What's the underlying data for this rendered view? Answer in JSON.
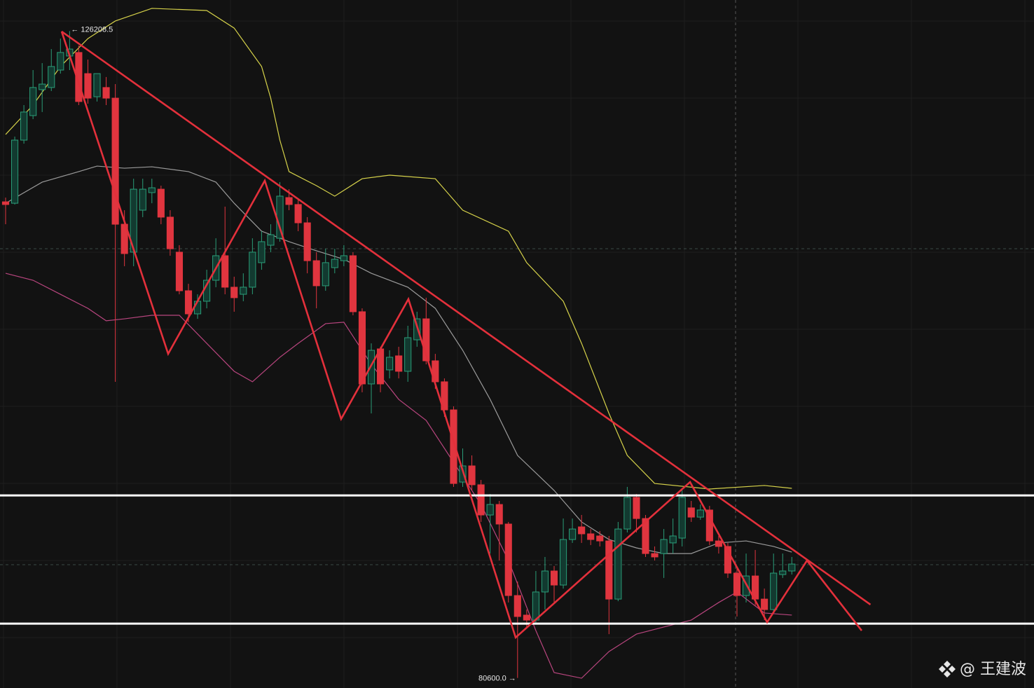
{
  "chart_data": {
    "type": "candlestick",
    "xlim": [
      -0.613,
      112.49
    ],
    "ylim": [
      79890,
      128400
    ],
    "grid": true,
    "up_color": "#2a9d78",
    "down_color": "#e0353f",
    "open": [
      114170,
      114070,
      118520,
      120250,
      122080,
      122230,
      123460,
      124450,
      124700,
      123210,
      121580,
      122230,
      121480,
      112590,
      110620,
      113580,
      114820,
      115060,
      113090,
      110620,
      107900,
      106270,
      107160,
      108640,
      110370,
      108150,
      107650,
      108150,
      109880,
      111110,
      111600,
      114470,
      113980,
      112690,
      110020,
      108250,
      109530,
      110020,
      110370,
      106420,
      101330,
      103800,
      102320,
      103310,
      102220,
      104440,
      105920,
      102960,
      101480,
      99500,
      94410,
      95550,
      94220,
      92090,
      92830,
      91450,
      86410,
      85030,
      84680,
      86660,
      88140,
      87150,
      90360,
      91250,
      90760,
      90610,
      90260,
      86160,
      91100,
      93330,
      91840,
      89370,
      89370,
      90120,
      90460,
      92590,
      91940,
      92440,
      90260,
      89870,
      87990,
      86410,
      87790,
      86160,
      85420,
      87890,
      88140
    ],
    "high": [
      114470,
      118770,
      120990,
      123460,
      123950,
      124940,
      125680,
      126208.5,
      125190,
      124200,
      123210,
      122970,
      122470,
      113580,
      115800,
      115800,
      115800,
      115310,
      113580,
      111110,
      108390,
      107650,
      109380,
      111600,
      113830,
      108890,
      109130,
      111600,
      112100,
      112590,
      115560,
      115060,
      114320,
      113090,
      110620,
      110860,
      110860,
      111110,
      110620,
      106660,
      104190,
      103950,
      103700,
      103950,
      105430,
      106420,
      107410,
      103450,
      101720,
      99750,
      96780,
      96290,
      94560,
      93570,
      93080,
      91600,
      87400,
      85420,
      88140,
      89130,
      88490,
      91840,
      91840,
      92090,
      91100,
      90960,
      90610,
      91600,
      94070,
      93570,
      92090,
      89870,
      91100,
      91840,
      93820,
      93080,
      92830,
      92730,
      90610,
      90120,
      88390,
      89370,
      89620,
      86900,
      89370,
      89370,
      89130
    ],
    "low": [
      112590,
      113980,
      118270,
      120000,
      120500,
      121980,
      123210,
      123460,
      120990,
      121090,
      121240,
      120990,
      101480,
      109630,
      109630,
      113090,
      114070,
      112590,
      110370,
      107650,
      105680,
      105920,
      106660,
      108150,
      107650,
      106420,
      107160,
      107650,
      109380,
      110620,
      111360,
      113580,
      112100,
      109130,
      106660,
      107900,
      109130,
      109630,
      106170,
      100740,
      99250,
      100740,
      101720,
      101720,
      101480,
      103950,
      102710,
      100980,
      99010,
      94070,
      94070,
      93820,
      91600,
      89370,
      88880,
      85920,
      80600,
      84190,
      84430,
      85420,
      85920,
      86900,
      90120,
      90120,
      89970,
      89870,
      83690,
      86010,
      90860,
      90860,
      89130,
      88880,
      87650,
      89370,
      89870,
      91600,
      91750,
      89970,
      89370,
      87650,
      84930,
      85920,
      85670,
      84680,
      85180,
      87650,
      87890
    ],
    "close": [
      113980,
      118520,
      120500,
      122230,
      122470,
      123710,
      124700,
      124940,
      121240,
      121480,
      123210,
      121480,
      112590,
      110520,
      115060,
      115060,
      115160,
      113090,
      110860,
      107900,
      106270,
      107160,
      108640,
      110370,
      108150,
      107410,
      108150,
      110620,
      111360,
      111850,
      114570,
      113980,
      112690,
      110020,
      108250,
      109880,
      110120,
      110370,
      106420,
      101330,
      103700,
      101330,
      103210,
      102220,
      104590,
      105920,
      102960,
      101480,
      99500,
      94310,
      95550,
      94220,
      92090,
      92830,
      91450,
      86410,
      84930,
      84680,
      86660,
      88140,
      87150,
      90360,
      91100,
      90760,
      90360,
      90260,
      86160,
      91100,
      93330,
      91840,
      89370,
      89130,
      90360,
      90610,
      93330,
      91940,
      92440,
      90260,
      89870,
      87990,
      86410,
      87790,
      86160,
      85420,
      87990,
      88140,
      88630
    ],
    "bands": [
      {
        "name": "upper",
        "color": "#d6d24a",
        "x": [
          0,
          3,
          6,
          9,
          12,
          16,
          22,
          25,
          28,
          29,
          30,
          31,
          34,
          36,
          39,
          42,
          47,
          50,
          55,
          57,
          61,
          63,
          66,
          68,
          71,
          77,
          83,
          86
        ],
        "values": [
          118920,
          120990,
          123710,
          125680,
          126920,
          127810,
          127660,
          126420,
          123710,
          121480,
          118520,
          116300,
          115310,
          114570,
          115800,
          116050,
          115800,
          113580,
          112100,
          109880,
          107160,
          104190,
          99250,
          96290,
          94310,
          93920,
          94170,
          93970
        ]
      },
      {
        "name": "middle",
        "color": "#9a9a9a",
        "x": [
          0,
          4,
          8,
          10,
          13,
          16,
          20,
          23,
          25,
          28,
          31,
          34,
          37,
          40,
          44,
          47,
          50,
          53,
          56,
          60,
          63,
          66,
          69,
          72,
          75,
          78,
          81,
          84,
          86
        ],
        "values": [
          114070,
          115560,
          116300,
          116690,
          116540,
          116640,
          116300,
          115560,
          114070,
          112100,
          111360,
          110720,
          110120,
          109130,
          108150,
          106660,
          103700,
          100240,
          96290,
          93820,
          91600,
          90360,
          89770,
          89370,
          89370,
          90120,
          90260,
          89870,
          89470
        ]
      },
      {
        "name": "lower",
        "color": "#b8457e",
        "x": [
          0,
          3,
          6,
          9,
          11,
          13,
          16,
          19,
          22,
          25,
          27,
          30,
          32,
          35,
          37,
          40,
          43,
          46,
          49,
          52,
          55,
          58,
          60,
          63,
          66,
          69,
          72,
          75,
          78,
          80,
          83,
          86
        ],
        "values": [
          109130,
          108640,
          107650,
          106660,
          105780,
          105920,
          106170,
          106170,
          104190,
          102220,
          101480,
          103210,
          104190,
          105580,
          105680,
          102710,
          100240,
          98760,
          95800,
          92830,
          88880,
          83940,
          80980,
          80580,
          82460,
          83690,
          84190,
          84680,
          85920,
          86660,
          85180,
          85030
        ]
      }
    ],
    "trend_lines": [
      {
        "color": "#e3303b",
        "x": [
          6.13,
          94.6
        ],
        "values": [
          126180,
          85770
        ]
      },
      {
        "color": "#e3303b",
        "x": [
          6.13,
          17.78,
          28.35,
          36.7,
          44.06,
          55.79,
          74.87,
          83.3,
          87.66,
          93.64
        ],
        "values": [
          126180,
          103450,
          115660,
          98860,
          107310,
          83450,
          94410,
          84530,
          88880,
          83940
        ]
      }
    ],
    "levels": [
      93470,
      84430
    ],
    "level_color": "#ffffff",
    "price_labels": [
      {
        "x": 7,
        "value": 126208.5,
        "label": "← 126208.5",
        "side": "right"
      },
      {
        "x": 56,
        "value": 80600,
        "label": "80600.0 →",
        "side": "left"
      }
    ],
    "watermark": "@ 王建波"
  }
}
